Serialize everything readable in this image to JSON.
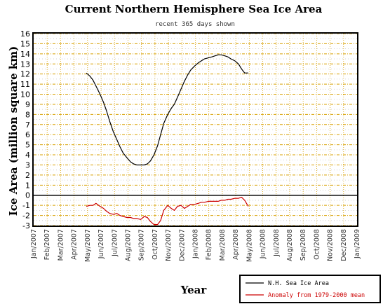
{
  "chart_data": {
    "type": "line",
    "title": "Current Northern Hemisphere Sea Ice Area",
    "subtitle": "recent 365 days shown",
    "xlabel": "Year",
    "ylabel": "Ice Area (million square km)",
    "x_tick_labels": [
      "Jan/2007",
      "Feb/2007",
      "Mar/2007",
      "Apr/2007",
      "May/2007",
      "Jun/2007",
      "Jul/2007",
      "Aug/2007",
      "Sep/2007",
      "Oct/2007",
      "Nov/2007",
      "Dec/2007",
      "Jan/2008",
      "Feb/2008",
      "Mar/2008",
      "Apr/2008",
      "May/2008",
      "Jun/2008",
      "Jul/2008",
      "Aug/2008",
      "Sep/2008",
      "Oct/2008",
      "Nov/2008",
      "Dec/2008",
      "Jan/2009"
    ],
    "y_tick_labels": [
      "-3",
      "-2",
      "-1",
      "0",
      "1",
      "2",
      "3",
      "4",
      "5",
      "6",
      "7",
      "8",
      "9",
      "10",
      "11",
      "12",
      "13",
      "14",
      "15",
      "16"
    ],
    "ylim": [
      -3,
      16
    ],
    "grid": true,
    "legend_position": "bottom-right",
    "series": [
      {
        "name": "N.H. Sea Ice Area",
        "color": "#000000",
        "x": [
          "2007-04-30",
          "2007-05-08",
          "2007-05-15",
          "2007-05-22",
          "2007-05-31",
          "2007-06-08",
          "2007-06-15",
          "2007-06-22",
          "2007-06-30",
          "2007-07-08",
          "2007-07-15",
          "2007-07-22",
          "2007-07-31",
          "2007-08-08",
          "2007-08-15",
          "2007-08-22",
          "2007-08-31",
          "2007-09-08",
          "2007-09-15",
          "2007-09-22",
          "2007-09-30",
          "2007-10-08",
          "2007-10-15",
          "2007-10-22",
          "2007-10-31",
          "2007-11-08",
          "2007-11-15",
          "2007-11-22",
          "2007-11-30",
          "2007-12-08",
          "2007-12-15",
          "2007-12-22",
          "2007-12-31",
          "2008-01-08",
          "2008-01-15",
          "2008-01-22",
          "2008-01-31",
          "2008-02-08",
          "2008-02-15",
          "2008-02-22",
          "2008-02-29",
          "2008-03-08",
          "2008-03-15",
          "2008-03-22",
          "2008-03-31",
          "2008-04-08",
          "2008-04-15",
          "2008-04-22",
          "2008-04-30"
        ],
        "values": [
          12.1,
          11.8,
          11.4,
          10.8,
          10.0,
          9.2,
          8.3,
          7.3,
          6.3,
          5.5,
          4.8,
          4.2,
          3.7,
          3.3,
          3.1,
          3.0,
          3.0,
          3.0,
          3.1,
          3.4,
          4.0,
          4.9,
          6.0,
          7.1,
          8.0,
          8.6,
          9.0,
          9.7,
          10.5,
          11.3,
          11.9,
          12.4,
          12.8,
          13.1,
          13.3,
          13.5,
          13.6,
          13.7,
          13.8,
          13.9,
          13.9,
          13.8,
          13.7,
          13.5,
          13.3,
          13.0,
          12.5,
          12.1,
          12.1
        ]
      },
      {
        "name": "Anomaly from 1979-2000 mean",
        "color": "#cc0000",
        "x": [
          "2007-04-30",
          "2007-05-08",
          "2007-05-15",
          "2007-05-22",
          "2007-05-31",
          "2007-06-08",
          "2007-06-15",
          "2007-06-22",
          "2007-06-30",
          "2007-07-08",
          "2007-07-15",
          "2007-07-22",
          "2007-07-31",
          "2007-08-08",
          "2007-08-15",
          "2007-08-22",
          "2007-08-31",
          "2007-09-08",
          "2007-09-15",
          "2007-09-22",
          "2007-09-30",
          "2007-10-08",
          "2007-10-15",
          "2007-10-22",
          "2007-10-31",
          "2007-11-08",
          "2007-11-15",
          "2007-11-22",
          "2007-11-30",
          "2007-12-08",
          "2007-12-15",
          "2007-12-22",
          "2007-12-31",
          "2008-01-08",
          "2008-01-15",
          "2008-01-22",
          "2008-01-31",
          "2008-02-08",
          "2008-02-15",
          "2008-02-22",
          "2008-02-29",
          "2008-03-08",
          "2008-03-15",
          "2008-03-22",
          "2008-03-31",
          "2008-04-08",
          "2008-04-15",
          "2008-04-22",
          "2008-04-30"
        ],
        "values": [
          -1.1,
          -1.0,
          -1.0,
          -0.8,
          -1.1,
          -1.3,
          -1.6,
          -1.8,
          -1.9,
          -1.8,
          -2.0,
          -2.1,
          -2.2,
          -2.2,
          -2.3,
          -2.3,
          -2.4,
          -2.1,
          -2.2,
          -2.6,
          -2.9,
          -2.9,
          -2.5,
          -1.5,
          -1.0,
          -1.3,
          -1.5,
          -1.1,
          -1.0,
          -1.3,
          -1.1,
          -0.9,
          -0.9,
          -0.8,
          -0.7,
          -0.7,
          -0.6,
          -0.6,
          -0.6,
          -0.6,
          -0.5,
          -0.5,
          -0.4,
          -0.4,
          -0.3,
          -0.3,
          -0.2,
          -0.5,
          -1.1
        ]
      }
    ]
  },
  "colors": {
    "grid_major": "#d8a000",
    "grid_minor": "#c8c8c8",
    "zero_line": "#000000"
  }
}
